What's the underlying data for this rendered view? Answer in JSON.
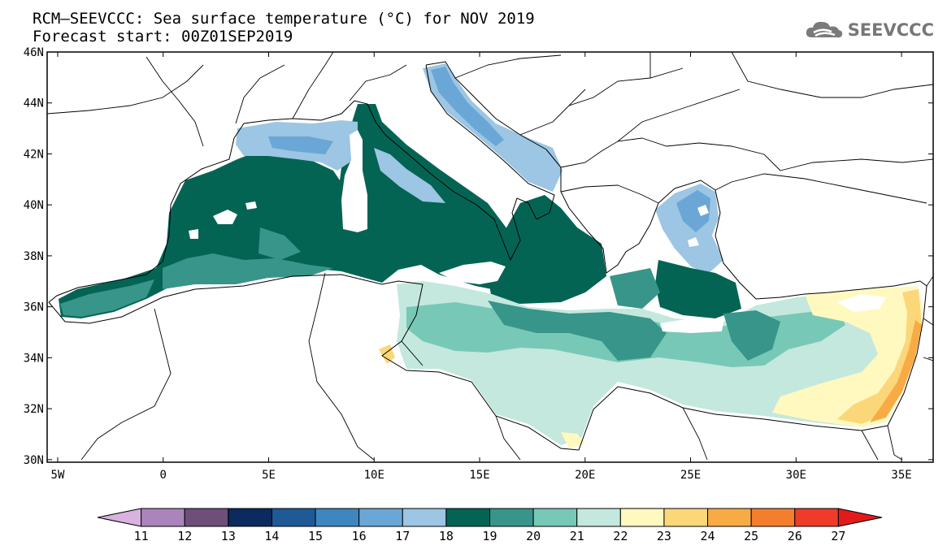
{
  "title_line1": "RCM–SEEVCCC: Sea surface temperature (°C) for NOV 2019",
  "title_line2": "Forecast start: 00Z01SEP2019",
  "logo_text": "SEEVCCC",
  "map": {
    "lon_range": [
      -5.5,
      36.5
    ],
    "lat_range": [
      29.9,
      46
    ],
    "lon_ticks": [
      {
        "v": -5,
        "label": "5W"
      },
      {
        "v": 0,
        "label": "0"
      },
      {
        "v": 5,
        "label": "5E"
      },
      {
        "v": 10,
        "label": "10E"
      },
      {
        "v": 15,
        "label": "15E"
      },
      {
        "v": 20,
        "label": "20E"
      },
      {
        "v": 25,
        "label": "25E"
      },
      {
        "v": 30,
        "label": "30E"
      },
      {
        "v": 35,
        "label": "35E"
      }
    ],
    "lat_ticks": [
      {
        "v": 30,
        "label": "30N"
      },
      {
        "v": 32,
        "label": "32N"
      },
      {
        "v": 34,
        "label": "34N"
      },
      {
        "v": 36,
        "label": "36N"
      },
      {
        "v": 38,
        "label": "38N"
      },
      {
        "v": 40,
        "label": "40N"
      },
      {
        "v": 42,
        "label": "42N"
      },
      {
        "v": 44,
        "label": "44N"
      },
      {
        "v": 46,
        "label": "46N"
      }
    ]
  },
  "colorbar": {
    "labels": [
      "11",
      "12",
      "13",
      "14",
      "15",
      "16",
      "17",
      "18",
      "19",
      "20",
      "21",
      "22",
      "23",
      "24",
      "25",
      "26",
      "27"
    ],
    "colors": [
      "#d8b3de",
      "#a985bc",
      "#6e4f7a",
      "#0b2a5e",
      "#1d5a96",
      "#3e86bf",
      "#6aa7d6",
      "#9cc6e3",
      "#046454",
      "#37958a",
      "#77c8b7",
      "#c4e8dd",
      "#fff9c0",
      "#fbd77a",
      "#f8ab45",
      "#f47e2e",
      "#ee3b2a",
      "#e31a1c"
    ]
  },
  "colors": {
    "c16": "#6aa7d6",
    "c17": "#9cc6e3",
    "c18": "#046454",
    "c19": "#37958a",
    "c20": "#77c8b7",
    "c21": "#c4e8dd",
    "c22": "#fff9c0",
    "c23": "#fbd77a",
    "c24": "#f8ab45"
  }
}
